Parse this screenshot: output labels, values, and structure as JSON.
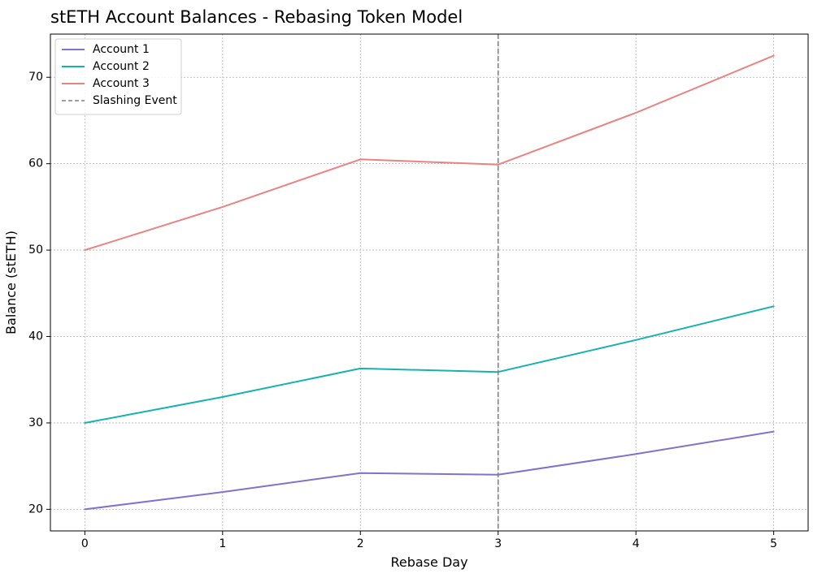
{
  "chart_data": {
    "type": "line",
    "title": "stETH Account Balances - Rebasing Token Model",
    "xlabel": "Rebase Day",
    "ylabel": "Balance (stETH)",
    "x": [
      0,
      1,
      2,
      3,
      4,
      5
    ],
    "xlim": [
      -0.25,
      5.25
    ],
    "ylim": [
      17.5,
      75
    ],
    "xticks": [
      "0",
      "1",
      "2",
      "3",
      "4",
      "5"
    ],
    "yticks": [
      "20",
      "30",
      "40",
      "50",
      "60",
      "70"
    ],
    "grid": true,
    "legend_position": "top-left",
    "series": [
      {
        "name": "Account 1",
        "color": "#8172cb",
        "values": [
          20.0,
          22.0,
          24.2,
          24.0,
          26.4,
          29.0
        ]
      },
      {
        "name": "Account 2",
        "color": "#17b2b0",
        "values": [
          30.0,
          33.0,
          36.3,
          35.9,
          39.6,
          43.5
        ]
      },
      {
        "name": "Account 3",
        "color": "#e98383",
        "values": [
          50.0,
          55.0,
          60.5,
          59.9,
          65.9,
          72.5
        ]
      }
    ],
    "annotations": [
      {
        "type": "vline",
        "x": 3,
        "name": "Slashing Event",
        "color": "#808080",
        "style": "dashed"
      }
    ]
  }
}
